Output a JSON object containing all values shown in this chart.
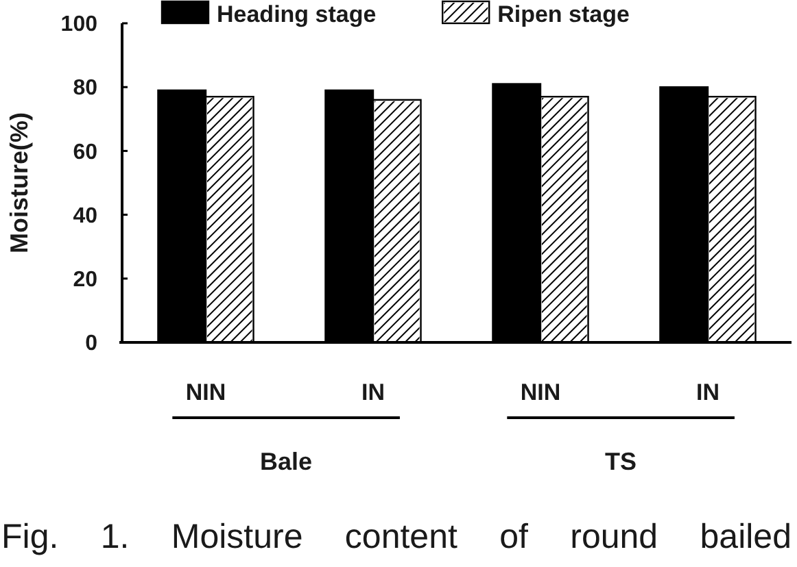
{
  "chart_data": {
    "type": "bar",
    "ylabel": "Moisture(%)",
    "categories": [
      "NIN",
      "IN",
      "NIN",
      "IN"
    ],
    "series": [
      {
        "name": "Heading stage",
        "color": "#000000",
        "values": [
          79,
          79,
          81,
          80
        ]
      },
      {
        "name": "Ripen stage",
        "color": "#ffffff",
        "values": [
          77,
          76,
          77,
          77
        ]
      }
    ],
    "ylim": [
      0,
      100
    ],
    "yticks": [
      0,
      20,
      40,
      60,
      80,
      100
    ],
    "legend": "top",
    "annotations": [
      "Bale",
      "TS",
      "Fig. 1. Moisture content of round bailed"
    ]
  }
}
